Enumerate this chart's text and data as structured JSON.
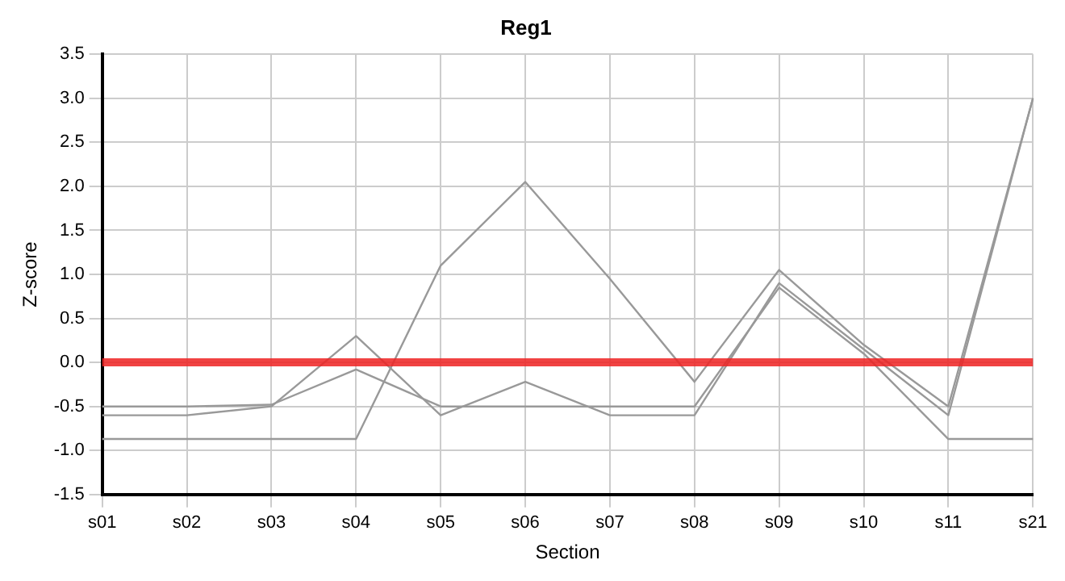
{
  "chart_data": {
    "type": "line",
    "title": "Reg1",
    "xlabel": "Section",
    "ylabel": "Z-score",
    "categories": [
      "s01",
      "s02",
      "s03",
      "s04",
      "s05",
      "s06",
      "s07",
      "s08",
      "s09",
      "s10",
      "s11",
      "s21"
    ],
    "series": [
      {
        "color": "#999999",
        "values": [
          -0.87,
          -0.87,
          -0.87,
          -0.87,
          1.1,
          2.05,
          0.95,
          -0.22,
          1.05,
          0.2,
          -0.5,
          3.0
        ]
      },
      {
        "color": "#999999",
        "values": [
          -0.6,
          -0.6,
          -0.5,
          0.3,
          -0.6,
          -0.22,
          -0.6,
          -0.6,
          0.9,
          0.15,
          -0.6,
          3.0
        ]
      },
      {
        "color": "#999999",
        "values": [
          -0.5,
          -0.5,
          -0.48,
          -0.08,
          -0.5,
          -0.5,
          -0.5,
          -0.5,
          0.85,
          0.1,
          -0.87,
          -0.87
        ]
      }
    ],
    "ylim": [
      -1.5,
      3.5
    ],
    "yticks": [
      {
        "value": -1.5,
        "label": "-1.5"
      },
      {
        "value": -1,
        "label": "-1.0"
      },
      {
        "value": -0.5,
        "label": "-0.5"
      },
      {
        "value": 0,
        "label": "0.0"
      },
      {
        "value": 0.5,
        "label": "0.5"
      },
      {
        "value": 1,
        "label": "1.0"
      },
      {
        "value": 1.5,
        "label": "1.5"
      },
      {
        "value": 2,
        "label": "2.0"
      },
      {
        "value": 2.5,
        "label": "2.5"
      },
      {
        "value": 3,
        "label": "3.0"
      },
      {
        "value": 3.5,
        "label": "3.5"
      }
    ],
    "ref_lines": [
      {
        "axis": "y",
        "value": 0,
        "color": "#ee2222"
      }
    ],
    "grid": true,
    "legend": false,
    "marker": "none",
    "line_style": "solid"
  }
}
